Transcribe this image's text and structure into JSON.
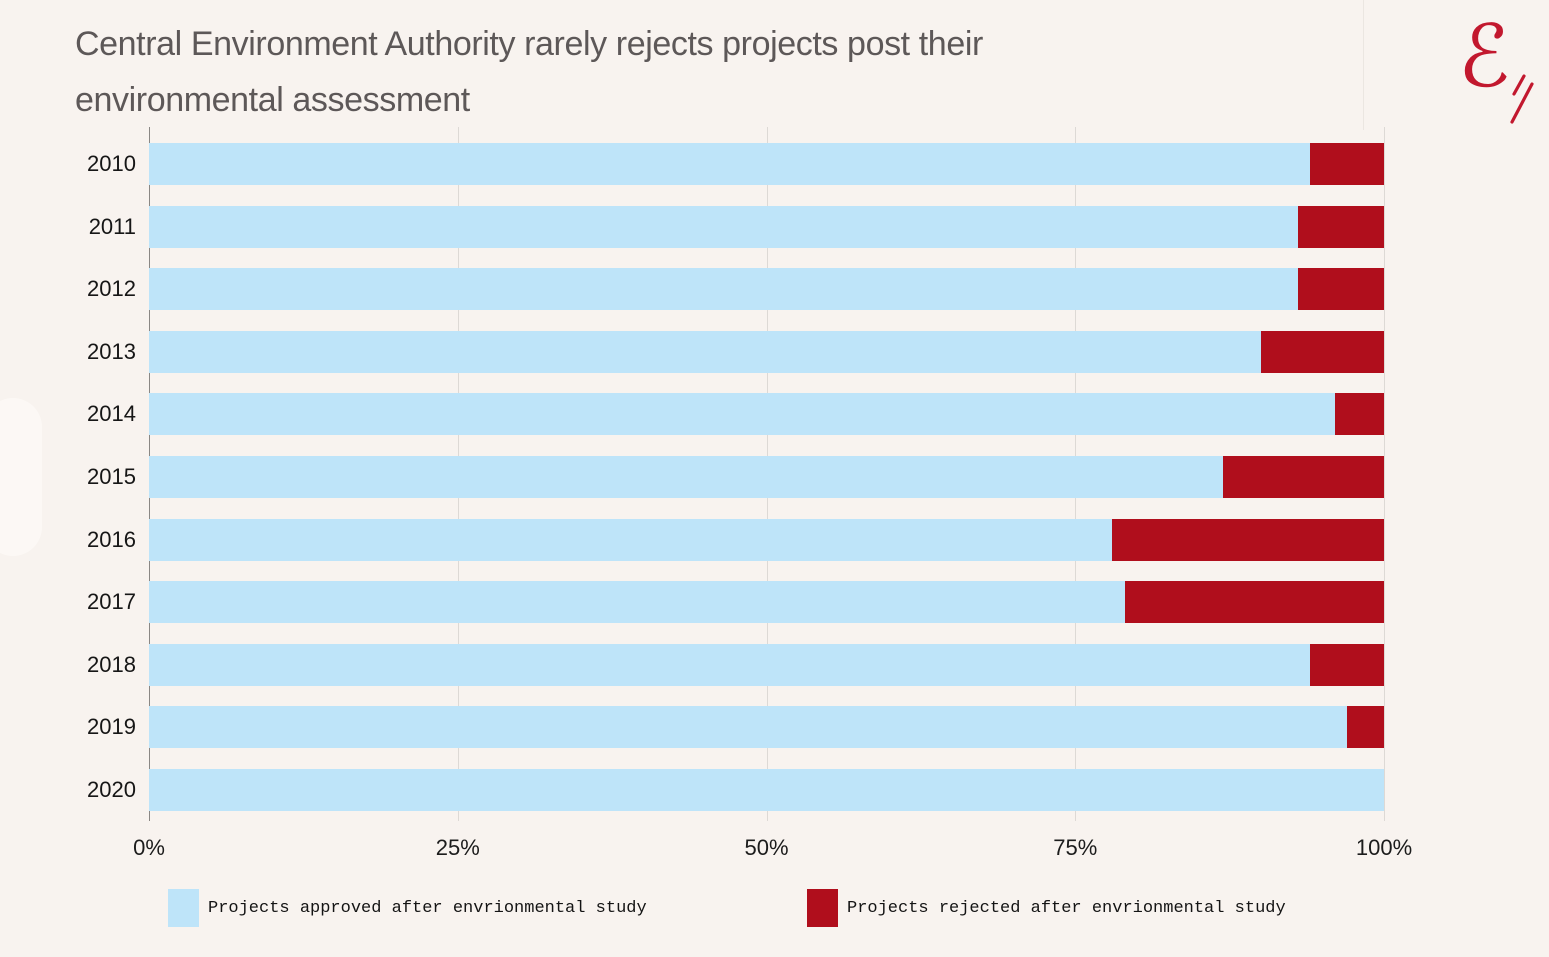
{
  "page": {
    "background_color": "#f8f3ef",
    "title_line1": "Central Environment Authority rarely rejects projects post their",
    "title_line2": "environmental assessment",
    "title_color": "#5d5858",
    "logo": {
      "glyph": "ℰ",
      "color": "#c2182e",
      "name": "script-e-signature"
    }
  },
  "chart_data": {
    "type": "bar",
    "orientation": "horizontal",
    "stacked": true,
    "title": "Central Environment Authority rarely rejects projects post their environmental assessment",
    "categories": [
      "2010",
      "2011",
      "2012",
      "2013",
      "2014",
      "2015",
      "2016",
      "2017",
      "2018",
      "2019",
      "2020"
    ],
    "series": [
      {
        "name": "Projects approved after envrionmental study",
        "color": "#bee4f9",
        "values": [
          94,
          93,
          93,
          90,
          96,
          87,
          78,
          79,
          94,
          97,
          100
        ]
      },
      {
        "name": "Projects rejected after envrionmental study",
        "color": "#b00e1c",
        "values": [
          6,
          7,
          7,
          10,
          4,
          13,
          22,
          21,
          6,
          3,
          0
        ]
      }
    ],
    "x_axis": {
      "unit": "%",
      "range": [
        0,
        100
      ],
      "ticks": [
        "0%",
        "25%",
        "50%",
        "75%",
        "100%"
      ],
      "tick_positions_pct": [
        0,
        25,
        50,
        75,
        100
      ]
    },
    "grid": true,
    "gridline_color": "#ddd9d5",
    "axis_line_color": "#8a8784",
    "legend_position": "bottom"
  }
}
